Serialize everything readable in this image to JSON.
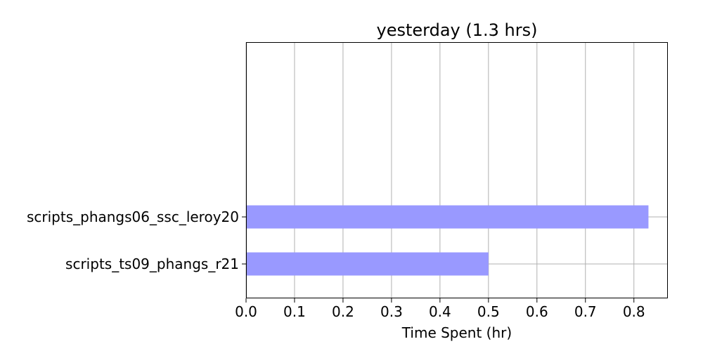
{
  "chart_data": {
    "type": "bar",
    "orientation": "horizontal",
    "title": "yesterday (1.3 hrs)",
    "xlabel": "Time Spent (hr)",
    "ylabel": "",
    "xlim": [
      0,
      0.87
    ],
    "xticks": [
      "0.0",
      "0.1",
      "0.2",
      "0.3",
      "0.4",
      "0.5",
      "0.6",
      "0.7",
      "0.8"
    ],
    "grid": true,
    "bar_color": "#9999ff",
    "grid_color": "#b0b0b0",
    "categories": [
      "scripts_phangs06_ssc_leroy20",
      "scripts_ts09_phangs_r21"
    ],
    "values": [
      0.83,
      0.5
    ]
  }
}
